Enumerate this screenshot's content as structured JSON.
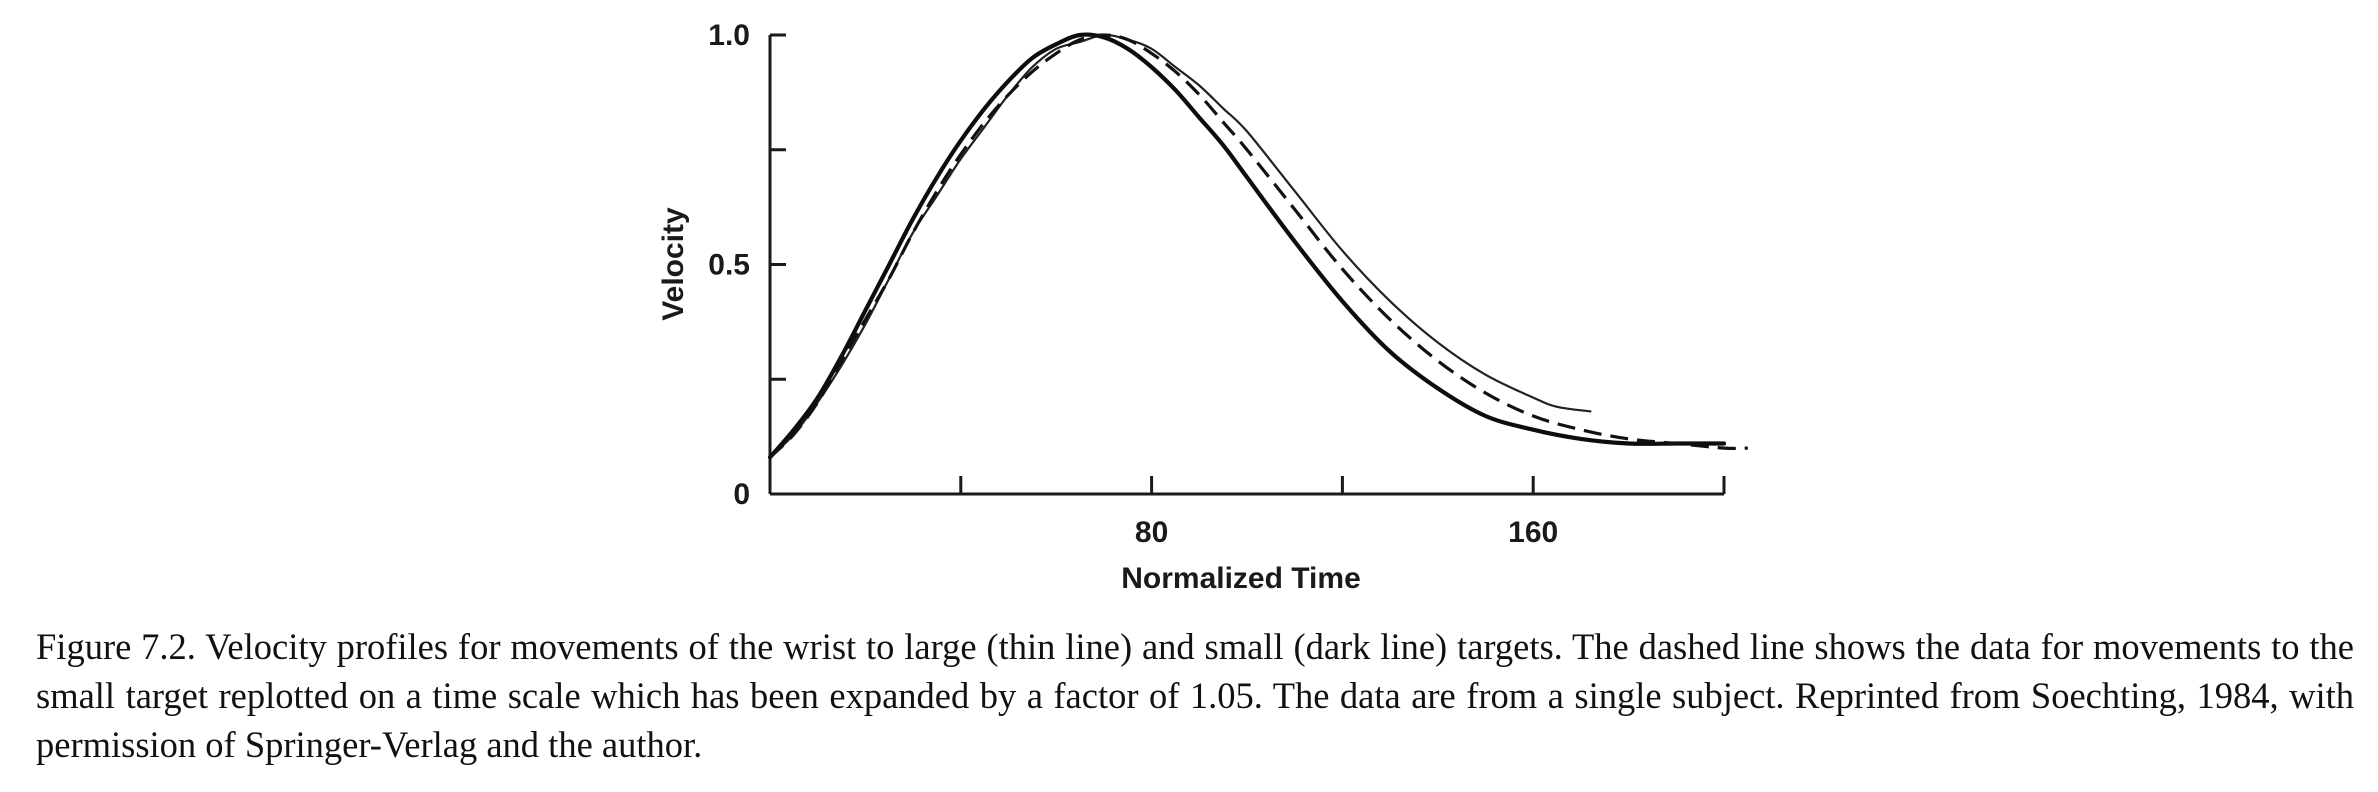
{
  "chart_data": {
    "type": "line",
    "title": "",
    "xlabel": "Normalized Time",
    "ylabel": "Velocity",
    "xlim": [
      0,
      200
    ],
    "ylim": [
      0,
      1.0
    ],
    "x_ticks": [
      40,
      80,
      120,
      160,
      200
    ],
    "x_tick_labels": [
      {
        "value": 80,
        "label": "80"
      },
      {
        "value": 160,
        "label": "160"
      }
    ],
    "y_ticks": [
      0.25,
      0.5,
      0.75,
      1.0
    ],
    "y_tick_labels": [
      {
        "value": 0,
        "label": "0"
      },
      {
        "value": 0.5,
        "label": "0.5"
      },
      {
        "value": 1.0,
        "label": "1.0"
      }
    ],
    "grid": false,
    "series": [
      {
        "style": "thin",
        "x": [
          0,
          5,
          10,
          15,
          20,
          25,
          30,
          35,
          40,
          45,
          50,
          55,
          60,
          65,
          70,
          75,
          80,
          85,
          90,
          95,
          100,
          110,
          120,
          130,
          140,
          150,
          160,
          165,
          172
        ],
        "y": [
          0.08,
          0.13,
          0.2,
          0.28,
          0.37,
          0.47,
          0.57,
          0.65,
          0.73,
          0.8,
          0.87,
          0.93,
          0.97,
          0.985,
          1.0,
          0.99,
          0.97,
          0.93,
          0.89,
          0.84,
          0.79,
          0.66,
          0.53,
          0.42,
          0.33,
          0.26,
          0.21,
          0.19,
          0.18
        ]
      },
      {
        "style": "dark",
        "x": [
          0,
          5,
          10,
          15,
          20,
          25,
          30,
          35,
          40,
          45,
          50,
          55,
          60,
          65,
          70,
          75,
          80,
          85,
          90,
          95,
          100,
          110,
          120,
          130,
          140,
          150,
          160,
          170,
          180,
          190,
          200
        ],
        "y": [
          0.08,
          0.14,
          0.21,
          0.3,
          0.4,
          0.5,
          0.6,
          0.69,
          0.77,
          0.84,
          0.9,
          0.95,
          0.98,
          1.0,
          0.995,
          0.97,
          0.93,
          0.88,
          0.82,
          0.76,
          0.69,
          0.55,
          0.42,
          0.31,
          0.23,
          0.17,
          0.14,
          0.12,
          0.11,
          0.11,
          0.11
        ]
      },
      {
        "style": "dashed",
        "x": [
          0,
          5,
          10,
          15,
          20,
          25,
          30,
          35,
          40,
          45,
          50,
          55,
          60,
          65,
          70,
          75,
          80,
          85,
          90,
          95,
          100,
          110,
          120,
          130,
          140,
          150,
          160,
          170,
          180,
          190,
          200,
          205
        ],
        "y": [
          0.08,
          0.13,
          0.2,
          0.29,
          0.38,
          0.47,
          0.57,
          0.66,
          0.74,
          0.81,
          0.87,
          0.92,
          0.96,
          0.99,
          1.0,
          0.99,
          0.96,
          0.92,
          0.87,
          0.81,
          0.75,
          0.62,
          0.49,
          0.38,
          0.29,
          0.22,
          0.17,
          0.14,
          0.12,
          0.11,
          0.1,
          0.1
        ]
      }
    ]
  },
  "caption": "Figure 7.2. Velocity profiles for movements of the wrist to large (thin line) and small (dark line) targets. The dashed line shows the data for movements to the small target replotted on a time scale which has been expanded by a factor of 1.05. The data are from a single subject. Reprinted from Soechting, 1984, with permission of Springer-Verlag and the author."
}
